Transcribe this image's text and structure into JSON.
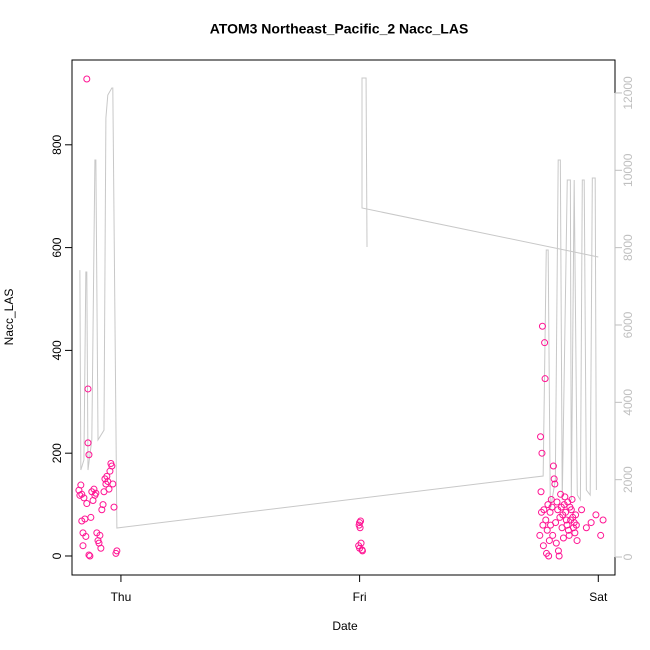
{
  "chart_data": {
    "type": "scatter",
    "title": "ATOM3 Northeast_Pacific_2 Nacc_LAS",
    "x_label": "Date",
    "y_label": "Nacc_LAS",
    "xlim": [
      -0.205,
      2.07
    ],
    "xticks": [
      {
        "value": 0,
        "label": "Thu"
      },
      {
        "value": 1,
        "label": "Fri"
      },
      {
        "value": 2,
        "label": "Sat"
      }
    ],
    "ylim": [
      -37,
      965
    ],
    "yticks": [
      0,
      200,
      400,
      600,
      800
    ],
    "y2lim": [
      -465,
      12852
    ],
    "y2ticks": [
      0,
      2000,
      4000,
      6000,
      8000,
      10000,
      12000
    ],
    "y2_color": "#bfbfbf",
    "series": [
      {
        "type": "scatter",
        "color": "#ff1493",
        "x": [
          -0.176,
          -0.172,
          -0.168,
          -0.164,
          -0.164,
          -0.159,
          -0.159,
          -0.155,
          -0.151,
          -0.147,
          -0.143,
          -0.143,
          -0.138,
          -0.138,
          -0.134,
          -0.134,
          -0.13,
          -0.126,
          -0.122,
          -0.117,
          -0.113,
          -0.109,
          -0.105,
          -0.101,
          -0.096,
          -0.092,
          -0.088,
          -0.084,
          -0.08,
          -0.075,
          -0.071,
          -0.067,
          -0.063,
          -0.059,
          -0.055,
          -0.05,
          -0.046,
          -0.042,
          -0.038,
          -0.034,
          -0.029,
          -0.021,
          -0.017,
          0.998,
          1.0,
          1.002,
          1.004,
          0.996,
          1.0,
          1.006,
          1.01,
          1.012,
          1.755,
          1.758,
          1.76,
          1.762,
          1.764,
          1.766,
          1.768,
          1.77,
          1.772,
          1.775,
          1.777,
          1.78,
          1.783,
          1.786,
          1.789,
          1.792,
          1.795,
          1.798,
          1.8,
          1.803,
          1.806,
          1.809,
          1.812,
          1.815,
          1.818,
          1.821,
          1.824,
          1.827,
          1.83,
          1.833,
          1.836,
          1.839,
          1.842,
          1.845,
          1.848,
          1.851,
          1.854,
          1.857,
          1.86,
          1.863,
          1.866,
          1.869,
          1.872,
          1.875,
          1.878,
          1.881,
          1.884,
          1.887,
          1.89,
          1.893,
          1.896,
          1.899,
          1.902,
          1.905,
          1.908,
          1.911,
          1.93,
          1.95,
          1.97,
          1.99,
          2.01,
          2.02
        ],
        "values": [
          128,
          118,
          138,
          120,
          68,
          45,
          20,
          113,
          72,
          38,
          102,
          928,
          325,
          220,
          197,
          2,
          0,
          75,
          125,
          108,
          130,
          118,
          122,
          45,
          30,
          25,
          40,
          15,
          90,
          100,
          125,
          150,
          140,
          155,
          145,
          130,
          165,
          180,
          175,
          140,
          95,
          5,
          10,
          60,
          65,
          55,
          68,
          20,
          15,
          25,
          12,
          10,
          40,
          232,
          125,
          85,
          200,
          447,
          60,
          20,
          90,
          415,
          345,
          70,
          5,
          50,
          100,
          0,
          30,
          85,
          60,
          110,
          95,
          40,
          175,
          150,
          140,
          65,
          25,
          105,
          90,
          10,
          0,
          75,
          120,
          95,
          55,
          80,
          35,
          100,
          115,
          85,
          70,
          60,
          105,
          50,
          40,
          95,
          70,
          90,
          110,
          75,
          55,
          65,
          45,
          80,
          60,
          30,
          90,
          55,
          65,
          80,
          40,
          70
        ]
      },
      {
        "type": "line",
        "axis": "y2",
        "color": "#c8c8c8",
        "x": [
          -0.172,
          -0.168,
          -0.155,
          -0.147,
          -0.143,
          -0.138,
          -0.122,
          -0.109,
          -0.105,
          -0.096,
          -0.071,
          -0.063,
          -0.055,
          -0.038,
          -0.034,
          -0.017,
          1.769,
          1.782,
          1.79,
          1.799,
          1.82,
          1.832,
          1.841,
          1.849,
          1.87,
          1.883,
          1.887,
          1.899,
          1.912,
          1.925,
          1.933,
          1.941,
          1.95,
          1.966,
          1.975,
          1.987,
          1.992,
          null,
          1.031,
          1.027,
          1.01,
          1.01,
          2.0
        ],
        "values": [
          7420,
          2250,
          2510,
          7370,
          7370,
          2250,
          3030,
          10266,
          10266,
          3030,
          3280,
          11352,
          11947,
          12128,
          12128,
          750,
          2095,
          7939,
          7939,
          1215,
          1991,
          10266,
          10266,
          1474,
          9749,
          9749,
          1474,
          9749,
          1603,
          1474,
          9749,
          9749,
          1733,
          1603,
          9801,
          9801,
          1733,
          null,
          8017,
          12387,
          12387,
          9025,
          7758
        ]
      }
    ]
  }
}
